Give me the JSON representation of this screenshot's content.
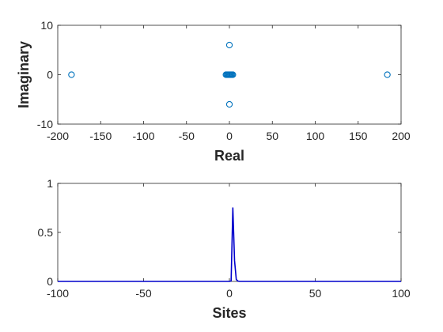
{
  "chart_data": [
    {
      "type": "scatter",
      "xlabel": "Real",
      "ylabel": "Imaginary",
      "xlim": [
        -200,
        200
      ],
      "ylim": [
        -10,
        10
      ],
      "xticks": [
        -200,
        -150,
        -100,
        -50,
        0,
        50,
        100,
        150,
        200
      ],
      "yticks": [
        -10,
        0,
        10
      ],
      "grid": false,
      "legend": "none",
      "marker": "open-circle",
      "color": "#0072BD",
      "points": [
        {
          "x": -184,
          "y": 0
        },
        {
          "x": 184,
          "y": 0
        },
        {
          "x": 0,
          "y": 6
        },
        {
          "x": 0,
          "y": -6
        },
        {
          "x": -4,
          "y": 0
        },
        {
          "x": -3,
          "y": 0
        },
        {
          "x": -2,
          "y": 0
        },
        {
          "x": -1,
          "y": 0
        },
        {
          "x": 0,
          "y": 0
        },
        {
          "x": 1,
          "y": 0
        },
        {
          "x": 2,
          "y": 0
        },
        {
          "x": 3,
          "y": 0
        },
        {
          "x": 4,
          "y": 0
        }
      ]
    },
    {
      "type": "line",
      "xlabel": "Sites",
      "ylabel": "",
      "xlim": [
        -100,
        100
      ],
      "ylim": [
        0,
        1
      ],
      "xticks": [
        -100,
        -50,
        0,
        50,
        100
      ],
      "yticks": [
        0,
        0.5,
        1
      ],
      "grid": false,
      "legend": "none",
      "color": "#0000CC",
      "x": [
        -100,
        -3,
        -2,
        -1,
        0,
        1,
        2,
        3,
        4,
        5,
        6,
        100
      ],
      "y": [
        0,
        0,
        0,
        0,
        0,
        0.005,
        0.75,
        0.21,
        0.02,
        0.003,
        0,
        0
      ]
    }
  ]
}
